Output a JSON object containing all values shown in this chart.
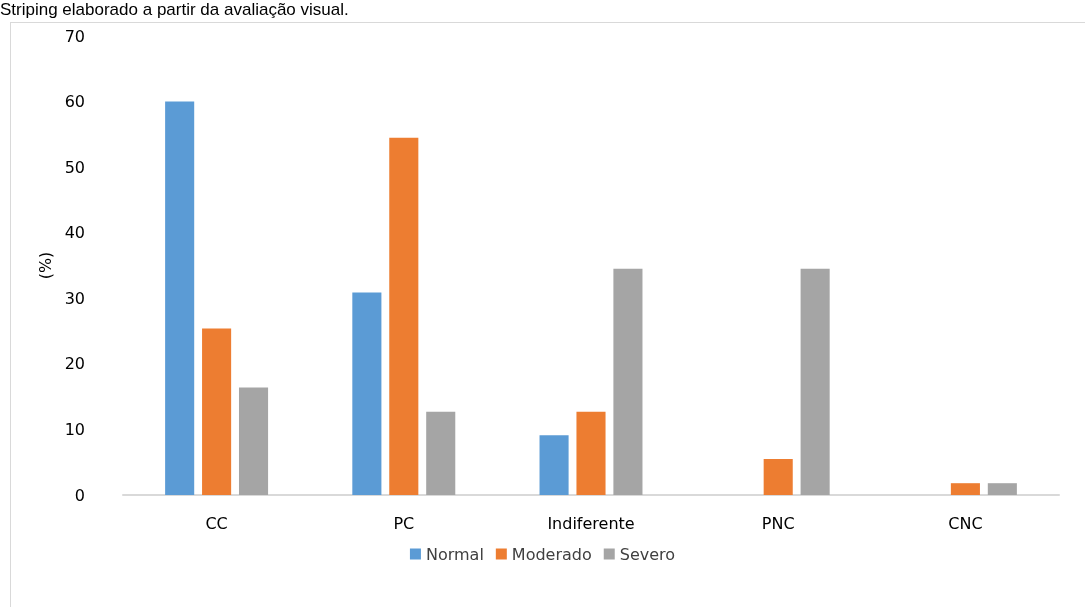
{
  "chart_data": {
    "type": "bar",
    "title": "Striping elaborado a partir da avaliação visual.",
    "ylabel": "(%)",
    "categories": [
      "CC",
      "PC",
      "Indiferente",
      "PNC",
      "CNC"
    ],
    "series": [
      {
        "name": "Normal",
        "color": "#5b9bd5",
        "values": [
          60,
          30.9,
          9.1,
          0,
          0
        ]
      },
      {
        "name": "Moderado",
        "color": "#ed7d31",
        "values": [
          25.4,
          54.5,
          12.7,
          5.5,
          1.8
        ]
      },
      {
        "name": "Severo",
        "color": "#a5a5a5",
        "values": [
          16.4,
          12.7,
          34.5,
          34.5,
          1.8
        ]
      }
    ],
    "ylim": [
      0,
      70
    ],
    "yticks": [
      0,
      10,
      20,
      30,
      40,
      50,
      60,
      70
    ],
    "grid": false,
    "legend": "bottom"
  }
}
